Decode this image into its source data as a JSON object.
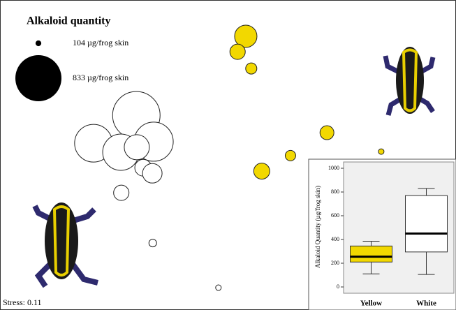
{
  "chart_data": [
    {
      "type": "bubble",
      "title": "Alkaloid quantity",
      "annotation": "Stress: 0.11",
      "xlim": [
        0,
        100
      ],
      "ylim": [
        0,
        100
      ],
      "size_legend": [
        {
          "value": 104,
          "label": "104 µg/frog skin"
        },
        {
          "value": 833,
          "label": "833 µg/frog skin"
        }
      ],
      "series": [
        {
          "color": "#f2d800",
          "x": [
            53.9,
            52.1,
            55.1,
            71.7,
            63.7,
            57.4,
            83.6
          ],
          "y": [
            88.3,
            83.3,
            77.9,
            57.2,
            49.8,
            44.8,
            51.1
          ],
          "sizes": [
            404,
            278,
            202,
            252,
            189,
            290,
            101
          ]
        },
        {
          "color": "#ffffff",
          "x": [
            29.9,
            33.7,
            20.5,
            26.5,
            30.0,
            31.4,
            33.4,
            26.6,
            33.5,
            47.9
          ],
          "y": [
            62.8,
            54.3,
            53.8,
            50.9,
            52.5,
            45.9,
            44.1,
            37.8,
            21.6,
            7.2
          ],
          "sizes": [
            858,
            707,
            682,
            656,
            454,
            303,
            353,
            278,
            139,
            101
          ]
        }
      ]
    },
    {
      "type": "box",
      "y_label": "Alkaloid Quantity (µg/frog skin)",
      "categories": [
        "Yellow",
        "White"
      ],
      "colors": [
        "#f2d800",
        "#ffffff"
      ],
      "whisker_low": [
        110,
        105
      ],
      "q1": [
        210,
        295
      ],
      "median": [
        255,
        450
      ],
      "q3": [
        345,
        770
      ],
      "whisker_high": [
        385,
        830
      ],
      "ylim": [
        0,
        1000
      ],
      "yticks": [
        0,
        200,
        400,
        600,
        800,
        1000
      ]
    }
  ]
}
